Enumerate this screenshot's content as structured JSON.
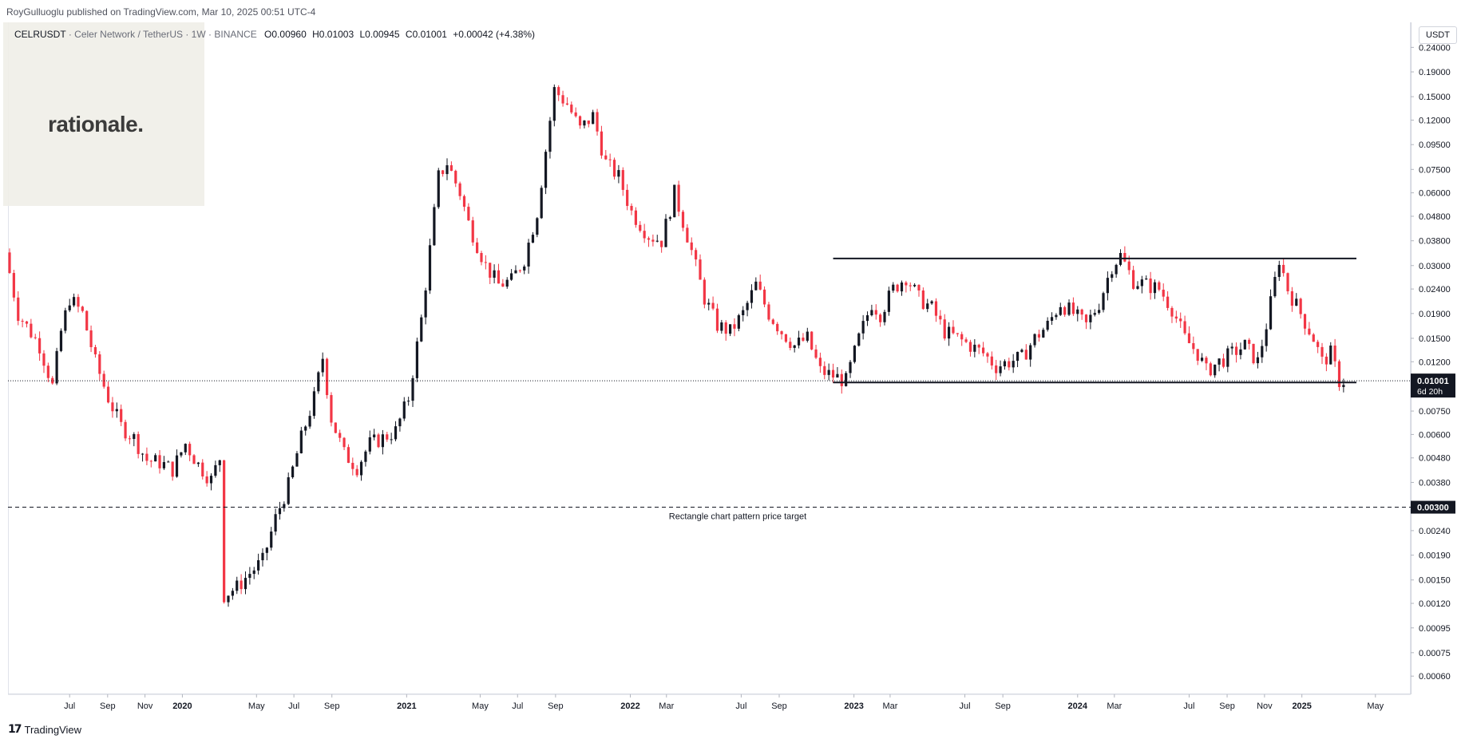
{
  "header": {
    "published": "RoyGulluoglu published on TradingView.com, Mar 10, 2025 00:51 UTC-4"
  },
  "symbol": {
    "pair": "CELRUSDT",
    "name": "Celer Network / TetherUS",
    "interval": "1W",
    "exchange": "BINANCE",
    "open": "O0.00960",
    "high": "H0.01003",
    "low": "L0.00945",
    "close": "C0.01001",
    "change": "+0.00042 (+4.38%)"
  },
  "watermark": {
    "text": "rationale."
  },
  "axis": {
    "currency": "USDT"
  },
  "footer": {
    "brand": "TradingView",
    "icon": "tradingview-logo-icon"
  },
  "colors": {
    "up": "#131722",
    "down": "#f23645",
    "line": "#131722"
  },
  "chart_data": {
    "type": "candlestick",
    "scale": "log",
    "ylim": [
      0.00052,
      0.3
    ],
    "y_ticks": [
      "0.24000",
      "0.19000",
      "0.15000",
      "0.12000",
      "0.09500",
      "0.07500",
      "0.06000",
      "0.04800",
      "0.03800",
      "0.03000",
      "0.02400",
      "0.01900",
      "0.01500",
      "0.01200",
      "0.00750",
      "0.00600",
      "0.00480",
      "0.00380",
      "0.00240",
      "0.00190",
      "0.00150",
      "0.00120",
      "0.00095",
      "0.00075",
      "0.00060"
    ],
    "x_ticks": [
      {
        "label": "Jul",
        "date": "2019-07-01",
        "bold": false
      },
      {
        "label": "Sep",
        "date": "2019-09-01",
        "bold": false
      },
      {
        "label": "Nov",
        "date": "2019-11-01",
        "bold": false
      },
      {
        "label": "2020",
        "date": "2020-01-01",
        "bold": true
      },
      {
        "label": "May",
        "date": "2020-05-01",
        "bold": false
      },
      {
        "label": "Jul",
        "date": "2020-07-01",
        "bold": false
      },
      {
        "label": "Sep",
        "date": "2020-09-01",
        "bold": false
      },
      {
        "label": "2021",
        "date": "2021-01-01",
        "bold": true
      },
      {
        "label": "May",
        "date": "2021-05-01",
        "bold": false
      },
      {
        "label": "Jul",
        "date": "2021-07-01",
        "bold": false
      },
      {
        "label": "Sep",
        "date": "2021-09-01",
        "bold": false
      },
      {
        "label": "2022",
        "date": "2022-01-01",
        "bold": true
      },
      {
        "label": "Mar",
        "date": "2022-03-01",
        "bold": false
      },
      {
        "label": "Jul",
        "date": "2022-07-01",
        "bold": false
      },
      {
        "label": "Sep",
        "date": "2022-09-01",
        "bold": false
      },
      {
        "label": "2023",
        "date": "2023-01-01",
        "bold": true
      },
      {
        "label": "Mar",
        "date": "2023-03-01",
        "bold": false
      },
      {
        "label": "Jul",
        "date": "2023-07-01",
        "bold": false
      },
      {
        "label": "Sep",
        "date": "2023-09-01",
        "bold": false
      },
      {
        "label": "2024",
        "date": "2024-01-01",
        "bold": true
      },
      {
        "label": "Mar",
        "date": "2024-03-01",
        "bold": false
      },
      {
        "label": "Jul",
        "date": "2024-07-01",
        "bold": false
      },
      {
        "label": "Sep",
        "date": "2024-09-01",
        "bold": false
      },
      {
        "label": "Nov",
        "date": "2024-11-01",
        "bold": false
      },
      {
        "label": "2025",
        "date": "2025-01-01",
        "bold": true
      },
      {
        "label": "May",
        "date": "2025-05-01",
        "bold": false
      }
    ],
    "x_range": [
      "2019-03-25",
      "2025-06-25"
    ],
    "last_price": {
      "value": 0.01001,
      "label": "0.01001",
      "countdown": "6d 20h"
    },
    "target": {
      "value": 0.003,
      "label": "0.00300",
      "annotation": "Rectangle chart pattern price target"
    },
    "rectangle": {
      "top": 0.0321,
      "bottom": 0.00985,
      "start": "2022-11-28",
      "end": "2025-03-31"
    },
    "price_path": [
      [
        "2019-03-25",
        0.034
      ],
      [
        "2019-04-15",
        0.019
      ],
      [
        "2019-05-20",
        0.014
      ],
      [
        "2019-06-10",
        0.0095
      ],
      [
        "2019-06-24",
        0.016
      ],
      [
        "2019-07-08",
        0.022
      ],
      [
        "2019-07-29",
        0.019
      ],
      [
        "2019-08-19",
        0.012
      ],
      [
        "2019-09-09",
        0.0085
      ],
      [
        "2019-09-30",
        0.0065
      ],
      [
        "2019-10-21",
        0.0058
      ],
      [
        "2019-11-11",
        0.0047
      ],
      [
        "2019-12-02",
        0.0046
      ],
      [
        "2019-12-23",
        0.0043
      ],
      [
        "2020-01-13",
        0.0055
      ],
      [
        "2020-02-03",
        0.0045
      ],
      [
        "2020-02-24",
        0.0039
      ],
      [
        "2020-03-09",
        0.0048
      ],
      [
        "2020-03-16",
        0.0013
      ],
      [
        "2020-04-06",
        0.0014
      ],
      [
        "2020-04-27",
        0.0016
      ],
      [
        "2020-05-18",
        0.0018
      ],
      [
        "2020-06-08",
        0.0027
      ],
      [
        "2020-06-29",
        0.0037
      ],
      [
        "2020-07-20",
        0.0058
      ],
      [
        "2020-08-10",
        0.0085
      ],
      [
        "2020-08-24",
        0.0125
      ],
      [
        "2020-09-07",
        0.007
      ],
      [
        "2020-09-28",
        0.005
      ],
      [
        "2020-10-19",
        0.0044
      ],
      [
        "2020-11-09",
        0.0055
      ],
      [
        "2020-11-30",
        0.0058
      ],
      [
        "2020-12-21",
        0.0062
      ],
      [
        "2021-01-11",
        0.0085
      ],
      [
        "2021-02-01",
        0.018
      ],
      [
        "2021-02-15",
        0.035
      ],
      [
        "2021-03-01",
        0.07
      ],
      [
        "2021-03-15",
        0.08
      ],
      [
        "2021-04-05",
        0.06
      ],
      [
        "2021-04-19",
        0.045
      ],
      [
        "2021-05-17",
        0.03
      ],
      [
        "2021-06-07",
        0.025
      ],
      [
        "2021-06-28",
        0.026
      ],
      [
        "2021-07-19",
        0.032
      ],
      [
        "2021-08-09",
        0.05
      ],
      [
        "2021-08-23",
        0.09
      ],
      [
        "2021-09-06",
        0.16
      ],
      [
        "2021-09-27",
        0.14
      ],
      [
        "2021-10-18",
        0.11
      ],
      [
        "2021-11-08",
        0.125
      ],
      [
        "2021-11-29",
        0.08
      ],
      [
        "2021-12-20",
        0.07
      ],
      [
        "2022-01-10",
        0.05
      ],
      [
        "2022-02-07",
        0.04
      ],
      [
        "2022-02-28",
        0.038
      ],
      [
        "2022-03-21",
        0.06
      ],
      [
        "2022-04-11",
        0.04
      ],
      [
        "2022-05-09",
        0.022
      ],
      [
        "2022-05-30",
        0.017
      ],
      [
        "2022-06-20",
        0.016
      ],
      [
        "2022-07-11",
        0.019
      ],
      [
        "2022-08-01",
        0.025
      ],
      [
        "2022-08-22",
        0.019
      ],
      [
        "2022-09-12",
        0.016
      ],
      [
        "2022-10-03",
        0.014
      ],
      [
        "2022-10-24",
        0.015
      ],
      [
        "2022-11-14",
        0.011
      ],
      [
        "2022-12-05",
        0.0105
      ],
      [
        "2022-12-26",
        0.01
      ],
      [
        "2023-01-16",
        0.015
      ],
      [
        "2023-02-06",
        0.021
      ],
      [
        "2023-02-20",
        0.019
      ],
      [
        "2023-03-13",
        0.024
      ],
      [
        "2023-04-03",
        0.027
      ],
      [
        "2023-04-24",
        0.022
      ],
      [
        "2023-05-15",
        0.02
      ],
      [
        "2023-06-05",
        0.016
      ],
      [
        "2023-06-26",
        0.015
      ],
      [
        "2023-07-17",
        0.014
      ],
      [
        "2023-08-07",
        0.013
      ],
      [
        "2023-08-28",
        0.0115
      ],
      [
        "2023-09-18",
        0.012
      ],
      [
        "2023-10-09",
        0.0125
      ],
      [
        "2023-10-30",
        0.015
      ],
      [
        "2023-11-20",
        0.017
      ],
      [
        "2023-12-11",
        0.021
      ],
      [
        "2024-01-01",
        0.019
      ],
      [
        "2024-01-22",
        0.017
      ],
      [
        "2024-02-12",
        0.021
      ],
      [
        "2024-03-04",
        0.03
      ],
      [
        "2024-03-18",
        0.033
      ],
      [
        "2024-04-08",
        0.026
      ],
      [
        "2024-04-29",
        0.025
      ],
      [
        "2024-05-20",
        0.024
      ],
      [
        "2024-06-10",
        0.02
      ],
      [
        "2024-07-01",
        0.015
      ],
      [
        "2024-07-22",
        0.013
      ],
      [
        "2024-08-05",
        0.011
      ],
      [
        "2024-08-26",
        0.012
      ],
      [
        "2024-09-16",
        0.013
      ],
      [
        "2024-10-07",
        0.014
      ],
      [
        "2024-10-28",
        0.012
      ],
      [
        "2024-11-11",
        0.017
      ],
      [
        "2024-12-02",
        0.032
      ],
      [
        "2024-12-16",
        0.024
      ],
      [
        "2025-01-06",
        0.019
      ],
      [
        "2025-01-27",
        0.015
      ],
      [
        "2025-02-10",
        0.012
      ],
      [
        "2025-02-24",
        0.013
      ],
      [
        "2025-03-10",
        0.01
      ]
    ]
  }
}
